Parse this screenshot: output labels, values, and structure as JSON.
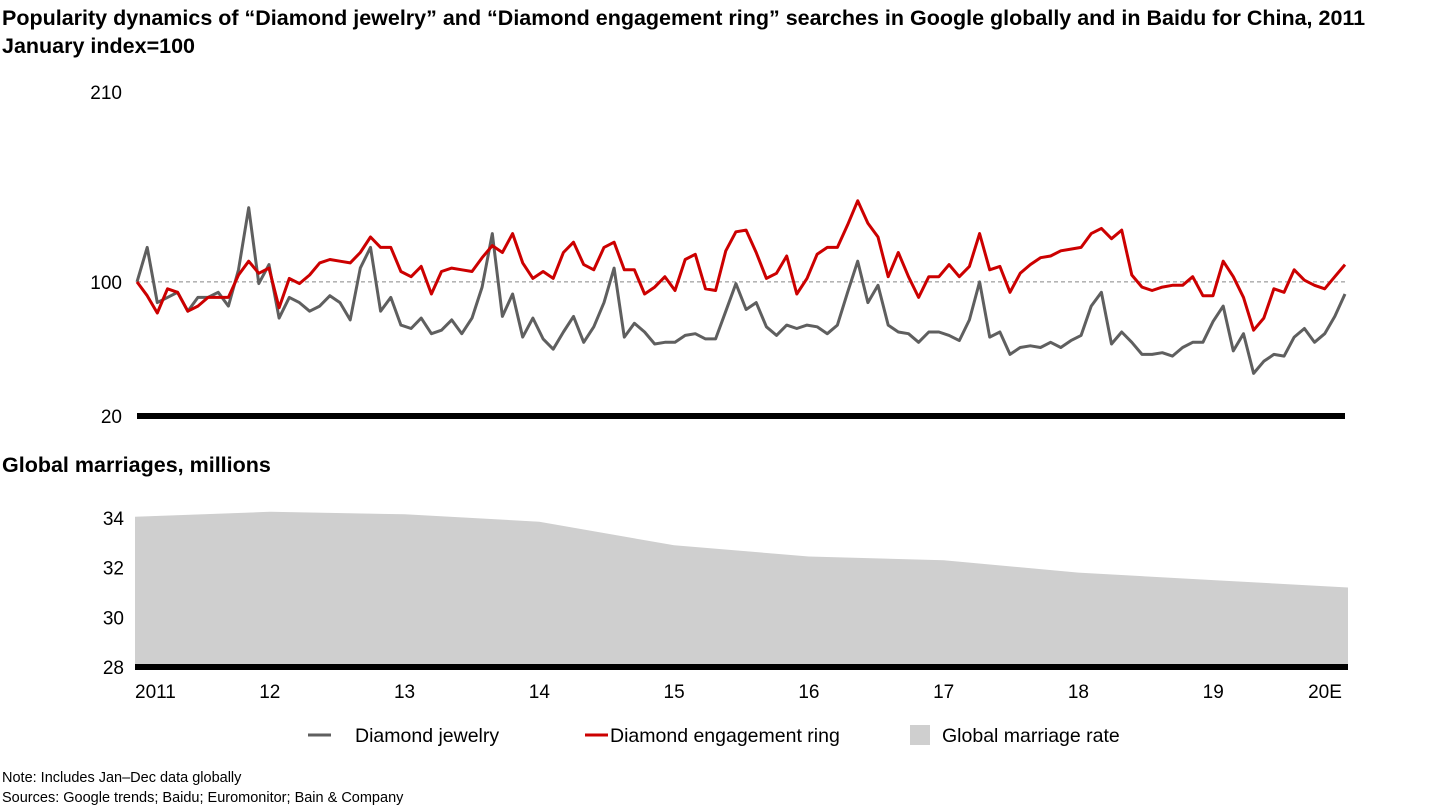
{
  "title": "Popularity dynamics of “Diamond jewelry” and “Diamond engagement ring” searches in Google globally and in Baidu for China, 2011 January index=100",
  "chart_data": [
    {
      "type": "line",
      "title": "Popularity dynamics of “Diamond jewelry” and “Diamond engagement ring” searches in Google globally and in Baidu for China, 2011 January index=100",
      "x_frequency": "monthly, Jan 2011 – Dec 2020",
      "ylim": [
        20,
        210
      ],
      "yticks": [
        "210",
        "100",
        "20"
      ],
      "reference_line": 100,
      "grid": false,
      "series": [
        {
          "name": "Diamond jewelry",
          "color": "#5f5f5f",
          "values": [
            100,
            120,
            88,
            91,
            94,
            83,
            91,
            91,
            94,
            86,
            107,
            143,
            99,
            110,
            79,
            91,
            88,
            83,
            86,
            92,
            88,
            78,
            108,
            120,
            83,
            91,
            75,
            73,
            79,
            70,
            72,
            78,
            70,
            79,
            97,
            128,
            80,
            93,
            68,
            79,
            67,
            61,
            71,
            80,
            65,
            74,
            88,
            108,
            68,
            76,
            71,
            64,
            65,
            65,
            69,
            70,
            67,
            67,
            83,
            99,
            84,
            88,
            74,
            69,
            75,
            73,
            75,
            74,
            70,
            75,
            94,
            112,
            88,
            98,
            75,
            71,
            70,
            65,
            71,
            71,
            69,
            66,
            78,
            100,
            68,
            71,
            58,
            62,
            63,
            62,
            65,
            62,
            66,
            69,
            86,
            94,
            64,
            71,
            65,
            58,
            58,
            59,
            57,
            62,
            65,
            65,
            77,
            86,
            60,
            70,
            47,
            54,
            58,
            57,
            68,
            73,
            65,
            70,
            80,
            93
          ]
        },
        {
          "name": "Diamond engagement ring",
          "color": "#cc0000",
          "values": [
            100,
            92,
            82,
            96,
            94,
            83,
            86,
            91,
            91,
            91,
            104,
            112,
            105,
            108,
            85,
            102,
            99,
            104,
            111,
            113,
            112,
            111,
            117,
            126,
            120,
            120,
            106,
            103,
            109,
            93,
            106,
            108,
            107,
            106,
            114,
            121,
            117,
            128,
            111,
            102,
            106,
            102,
            117,
            123,
            110,
            107,
            120,
            123,
            107,
            107,
            93,
            97,
            103,
            95,
            113,
            116,
            96,
            95,
            118,
            129,
            130,
            117,
            102,
            105,
            115,
            93,
            102,
            116,
            120,
            120,
            133,
            147,
            134,
            126,
            103,
            117,
            103,
            91,
            103,
            103,
            110,
            103,
            109,
            128,
            107,
            109,
            94,
            105,
            110,
            114,
            115,
            118,
            119,
            120,
            128,
            131,
            125,
            130,
            104,
            97,
            95,
            97,
            98,
            98,
            103,
            92,
            92,
            112,
            103,
            91,
            72,
            79,
            96,
            94,
            107,
            101,
            98,
            96,
            103,
            110
          ]
        }
      ]
    },
    {
      "type": "area",
      "title": "Global marriages, millions",
      "ylim": [
        28,
        34
      ],
      "yticks": [
        "34",
        "32",
        "30",
        "28"
      ],
      "categories": [
        "2011",
        "12",
        "13",
        "14",
        "15",
        "16",
        "17",
        "18",
        "19",
        "20E"
      ],
      "series": [
        {
          "name": "Global marriage rate",
          "color": "#cfcfcf",
          "values": [
            34.05,
            34.25,
            34.15,
            33.85,
            32.9,
            32.45,
            32.3,
            31.8,
            31.5,
            31.2
          ]
        }
      ]
    }
  ],
  "legend": [
    {
      "label": "Diamond jewelry",
      "color": "#5f5f5f",
      "shape": "line"
    },
    {
      "label": "Diamond engagement ring",
      "color": "#cc0000",
      "shape": "line"
    },
    {
      "label": "Global marriage rate",
      "color": "#cfcfcf",
      "shape": "square"
    }
  ],
  "note": "Note: Includes Jan–Dec data globally",
  "sources": "Sources: Google trends; Baidu; Euromonitor; Bain & Company"
}
